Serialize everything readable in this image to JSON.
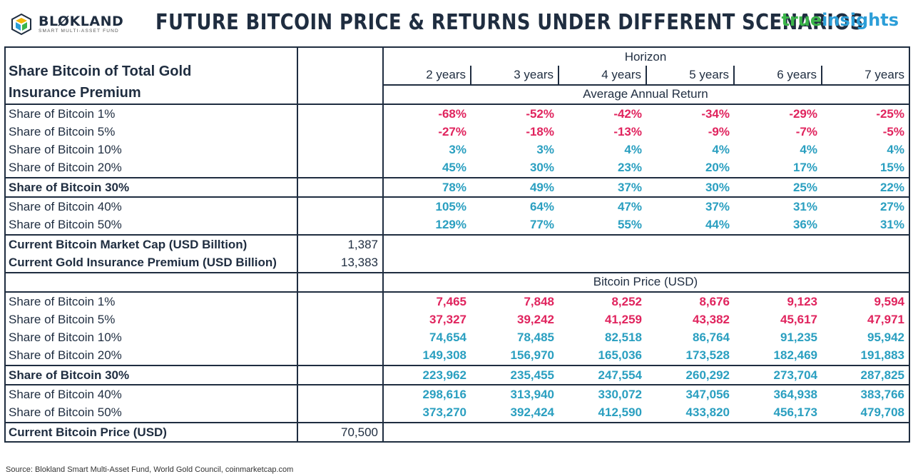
{
  "header": {
    "logo_name": "BLØKLAND",
    "logo_sub": "SMART MULTI-ASSET FUND",
    "title": "FUTURE BITCOIN PRICE & RETURNS UNDER DIFFERENT SCENARIOS",
    "brand_true": "true",
    "brand_insights": "insights"
  },
  "table": {
    "row_header_line1": "Share Bitcoin of Total Gold",
    "row_header_line2": "Insurance Premium",
    "horizon_label": "Horizon",
    "years": [
      "2 years",
      "3 years",
      "4 years",
      "5 years",
      "6 years",
      "7 years"
    ],
    "return_title": "Average Annual Return",
    "price_title": "Bitcoin Price (USD)",
    "cap_label": "Current Bitcoin Market Cap (USD Billtion)",
    "cap_value": "1,387",
    "premium_label": "Current Gold Insurance Premium (USD Billion)",
    "premium_value": "13,383",
    "price_label": "Current Bitcoin Price (USD)",
    "price_value": "70,500"
  },
  "chart_data": {
    "type": "table",
    "title": "FUTURE BITCOIN PRICE & RETURNS UNDER DIFFERENT SCENARIOS",
    "columns": [
      "2 years",
      "3 years",
      "4 years",
      "5 years",
      "6 years",
      "7 years"
    ],
    "returns": [
      {
        "label": "Share of Bitcoin 1%",
        "values": [
          "-68%",
          "-52%",
          "-42%",
          "-34%",
          "-29%",
          "-25%"
        ]
      },
      {
        "label": "Share of Bitcoin 5%",
        "values": [
          "-27%",
          "-18%",
          "-13%",
          "-9%",
          "-7%",
          "-5%"
        ]
      },
      {
        "label": "Share of Bitcoin 10%",
        "values": [
          "3%",
          "3%",
          "4%",
          "4%",
          "4%",
          "4%"
        ]
      },
      {
        "label": "Share of Bitcoin 20%",
        "values": [
          "45%",
          "30%",
          "23%",
          "20%",
          "17%",
          "15%"
        ]
      },
      {
        "label": "Share of Bitcoin 30%",
        "values": [
          "78%",
          "49%",
          "37%",
          "30%",
          "25%",
          "22%"
        ]
      },
      {
        "label": "Share of Bitcoin 40%",
        "values": [
          "105%",
          "64%",
          "47%",
          "37%",
          "31%",
          "27%"
        ]
      },
      {
        "label": "Share of Bitcoin 50%",
        "values": [
          "129%",
          "77%",
          "55%",
          "44%",
          "36%",
          "31%"
        ]
      }
    ],
    "prices": [
      {
        "label": "Share of Bitcoin 1%",
        "values": [
          "7,465",
          "7,848",
          "8,252",
          "8,676",
          "9,123",
          "9,594"
        ]
      },
      {
        "label": "Share of Bitcoin 5%",
        "values": [
          "37,327",
          "39,242",
          "41,259",
          "43,382",
          "45,617",
          "47,971"
        ]
      },
      {
        "label": "Share of Bitcoin 10%",
        "values": [
          "74,654",
          "78,485",
          "82,518",
          "86,764",
          "91,235",
          "95,942"
        ]
      },
      {
        "label": "Share of Bitcoin 20%",
        "values": [
          "149,308",
          "156,970",
          "165,036",
          "173,528",
          "182,469",
          "191,883"
        ]
      },
      {
        "label": "Share of Bitcoin 30%",
        "values": [
          "223,962",
          "235,455",
          "247,554",
          "260,292",
          "273,704",
          "287,825"
        ]
      },
      {
        "label": "Share of Bitcoin 40%",
        "values": [
          "298,616",
          "313,940",
          "330,072",
          "347,056",
          "364,938",
          "383,766"
        ]
      },
      {
        "label": "Share of Bitcoin 50%",
        "values": [
          "373,270",
          "392,424",
          "412,590",
          "433,820",
          "456,173",
          "479,708"
        ]
      }
    ]
  },
  "source": "Source: Blokland Smart Multi-Asset Fund, World Gold Council, coinmarketcap.com",
  "colors": {
    "negative": "#e0245e",
    "positive": "#2a9fc0",
    "text": "#1f2d40"
  }
}
